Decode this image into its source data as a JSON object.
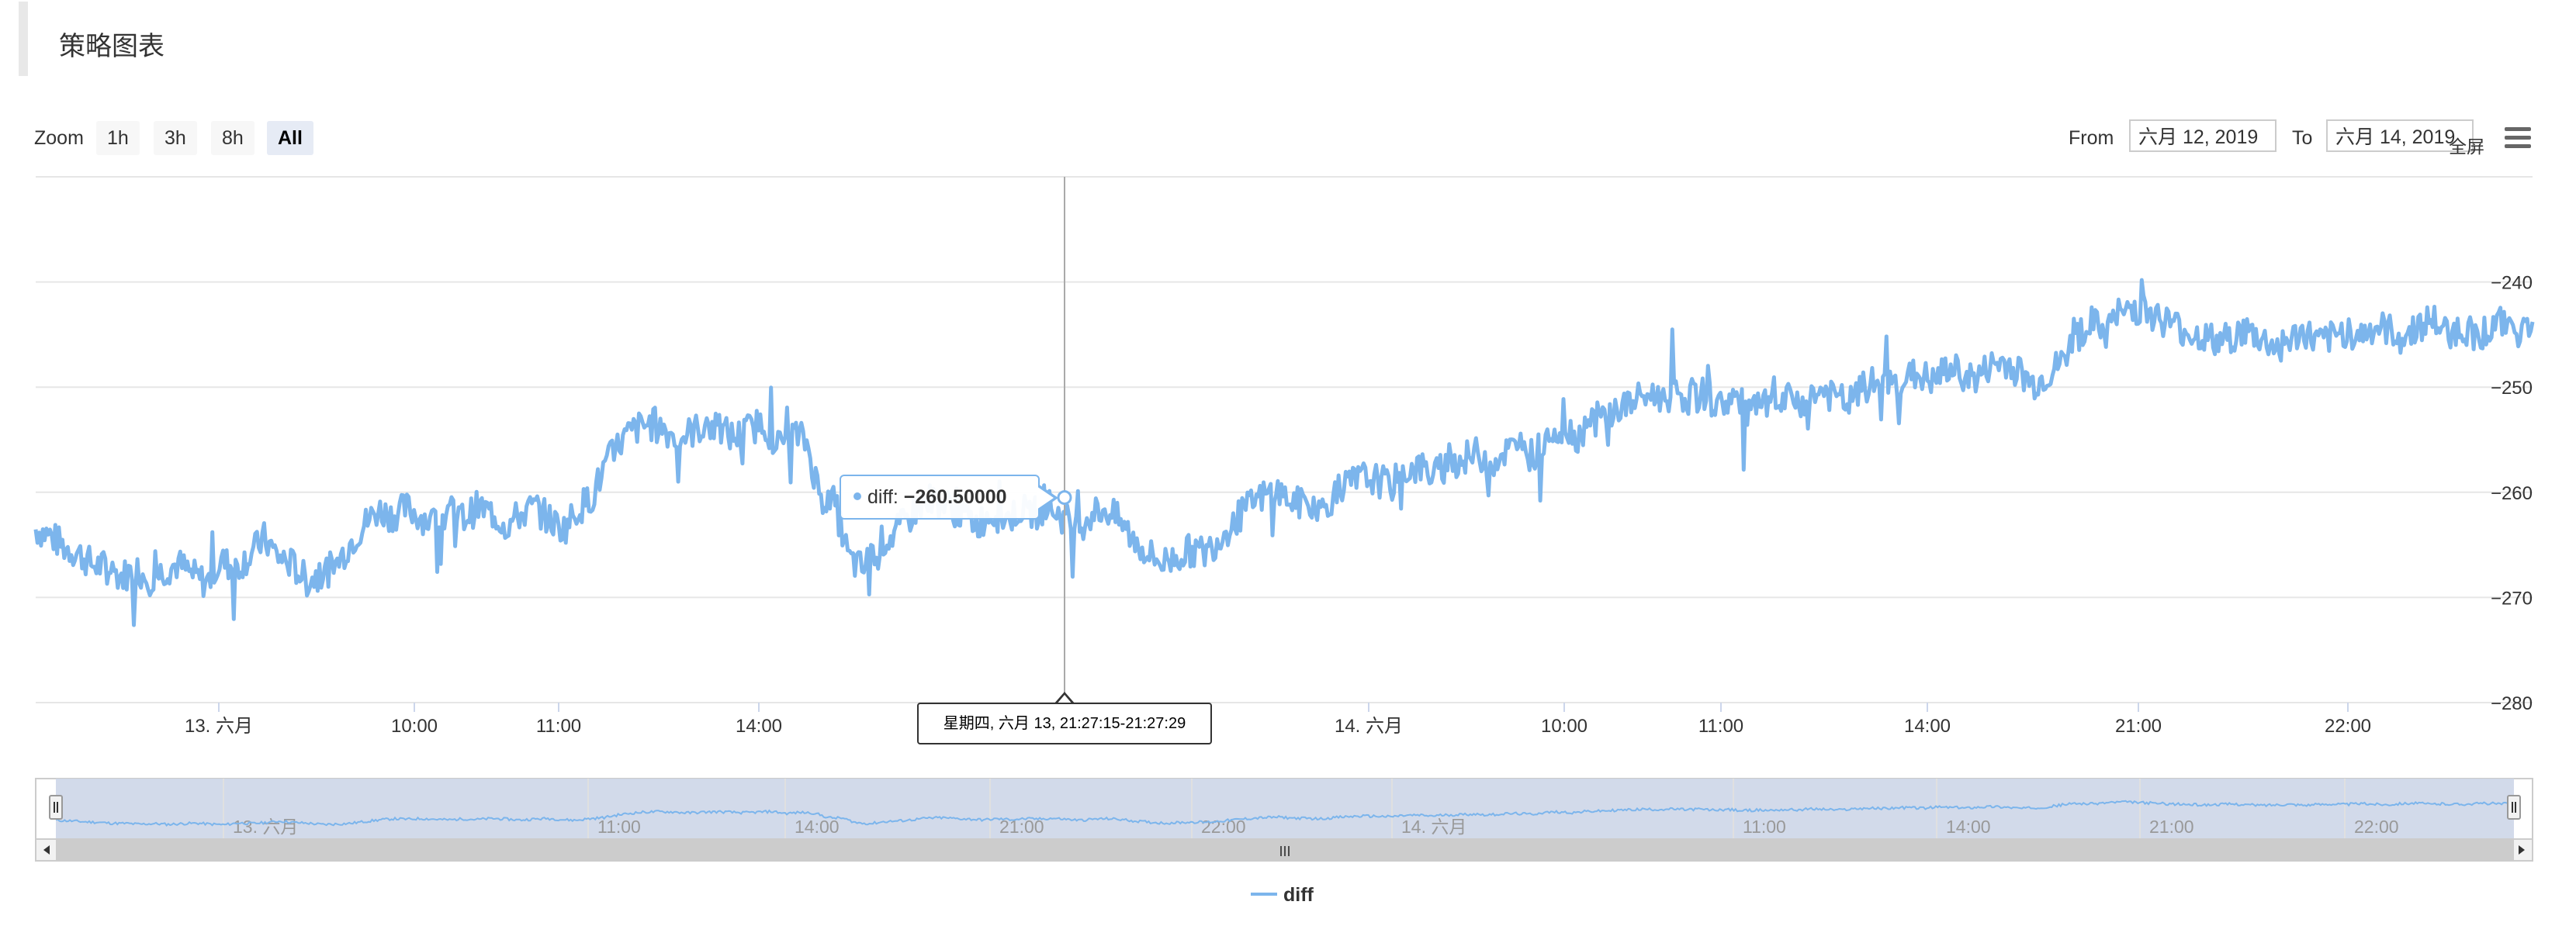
{
  "title": "策略图表",
  "toolbar": {
    "zoom_label": "Zoom",
    "zoom_buttons": [
      "1h",
      "3h",
      "8h",
      "All"
    ],
    "active_zoom": "All",
    "from_label": "From",
    "from_value": "六月 12, 2019",
    "to_label": "To",
    "to_value": "六月 14, 2019",
    "fullscreen_label": "全屏",
    "menu_icon": "hamburger-menu-icon"
  },
  "tooltip": {
    "series": "diff",
    "label": "diff: ",
    "value": "−260.50000",
    "x_label": "星期四, 六月 13, 21:27:15-21:27:29"
  },
  "colors": {
    "series": "#7cb5ec",
    "grid": "#e6e6e6",
    "navigator_mask": "#cdd6e8",
    "scrollbar": "#cccccc"
  },
  "chart_data": {
    "type": "line",
    "series": [
      {
        "name": "diff",
        "values": [
          -263.5,
          -264.1,
          -265.2,
          -265.8,
          -266.9,
          -267.1,
          -268.0,
          -267.3,
          -268.2,
          -267.4,
          -266.8,
          -267.9,
          -268.6,
          -266.5,
          -267.2,
          -266.0,
          -264.4,
          -266.1,
          -266.9,
          -268.4,
          -267.8,
          -267.0,
          -264.9,
          -263.1,
          -261.7,
          -262.2,
          -261.5,
          -262.3,
          -263.0,
          -261.8,
          -262.5,
          -261.4,
          -262.0,
          -263.2,
          -262.1,
          -261.4,
          -262.6,
          -263.5,
          -261.6,
          -260.4,
          -257.3,
          -255.2,
          -254.0,
          -253.5,
          -253.9,
          -255.0,
          -254.2,
          -253.6,
          -254.1,
          -254.8,
          -254.0,
          -253.3,
          -255.6,
          -254.4,
          -255.1,
          -260.5,
          -261.0,
          -266.4,
          -267.3,
          -265.0,
          -264.2,
          -262.8,
          -261.1,
          -260.5,
          -261.4,
          -262.1,
          -263.0,
          -261.9,
          -262.6,
          -261.7,
          -262.0,
          -261.2,
          -262.4,
          -263.5,
          -262.0,
          -261.6,
          -262.8,
          -264.6,
          -265.9,
          -266.7,
          -266.1,
          -265.5,
          -265.7,
          -264.3,
          -262.8,
          -261.4,
          -260.4,
          -259.8,
          -260.9,
          -261.2,
          -261.8,
          -260.3,
          -259.3,
          -258.6,
          -258.8,
          -259.4,
          -257.9,
          -257.6,
          -258.4,
          -257.3,
          -256.9,
          -256.3,
          -257.2,
          -256.1,
          -255.7,
          -256.6,
          -254.5,
          -253.8,
          -254.7,
          -253.2,
          -252.8,
          -252.0,
          -251.4,
          -250.7,
          -251.0,
          -250.5,
          -251.2,
          -250.6,
          -251.8,
          -250.9,
          -252.4,
          -251.7,
          -252.0,
          -251.1,
          -251.5,
          -250.3,
          -250.9,
          -251.6,
          -250.2,
          -249.5,
          -249.9,
          -249.1,
          -248.8,
          -249.6,
          -248.2,
          -248.7,
          -249.3,
          -248.0,
          -247.6,
          -248.5,
          -249.8,
          -248.9,
          -247.7,
          -245.2,
          -243.9,
          -244.6,
          -243.1,
          -242.4,
          -242.8,
          -243.5,
          -244.2,
          -244.9,
          -245.3,
          -245.8,
          -245.1,
          -244.7,
          -245.5,
          -246.2,
          -245.6,
          -244.8,
          -245.9,
          -245.3,
          -244.6,
          -245.1,
          -244.3,
          -244.7,
          -245.4,
          -244.1,
          -243.6,
          -244.9,
          -244.4,
          -245.0,
          -244.5,
          -243.8,
          -244.6,
          -244.2
        ],
        "min": -274.0,
        "max": -236.5
      }
    ],
    "x_range": [
      "六月 12, 2019",
      "六月 14, 2019"
    ],
    "x_ticks": [
      "13. 六月",
      "10:00",
      "11:00",
      "14:00",
      "21:00",
      "22:00",
      "14. 六月",
      "10:00",
      "11:00",
      "14:00",
      "21:00",
      "22:00"
    ],
    "y_ticks": [
      -240,
      -250,
      -260,
      -270,
      -280
    ],
    "ylim": [
      -280,
      -230
    ],
    "grid": true,
    "legend": "bottom-center",
    "navigator_ticks": [
      "13. 六月",
      "11:00",
      "14:00",
      "21:00",
      "22:00",
      "14. 六月",
      "11:00",
      "14:00",
      "21:00",
      "22:00"
    ],
    "scrollbar_grip": "III"
  }
}
